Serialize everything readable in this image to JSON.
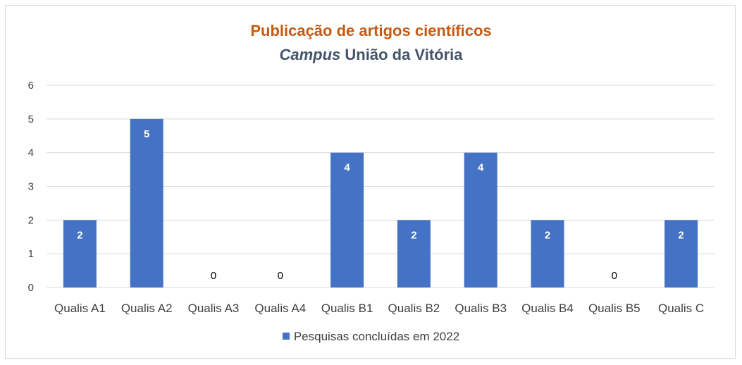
{
  "chart_data": {
    "type": "bar",
    "title": "Publicação de artigos científicos",
    "subtitle_italic": "Campus",
    "subtitle_rest": "União da Vitória",
    "categories": [
      "Qualis A1",
      "Qualis A2",
      "Qualis A3",
      "Qualis A4",
      "Qualis B1",
      "Qualis B2",
      "Qualis B3",
      "Qualis B4",
      "Qualis B5",
      "Qualis C"
    ],
    "series": [
      {
        "name": "Pesquisas concluídas em 2022",
        "values": [
          2,
          5,
          0,
          0,
          4,
          2,
          4,
          2,
          0,
          2
        ]
      }
    ],
    "ylim": [
      0,
      6
    ],
    "yticks": [
      0,
      1,
      2,
      3,
      4,
      5,
      6
    ],
    "grid": true,
    "legend": "bottom",
    "data_labels": true,
    "colors": {
      "bar": "#4472c4",
      "title": "#c55a11",
      "subtitle": "#44546a",
      "grid": "#d9d9d9",
      "text": "#404040"
    }
  }
}
